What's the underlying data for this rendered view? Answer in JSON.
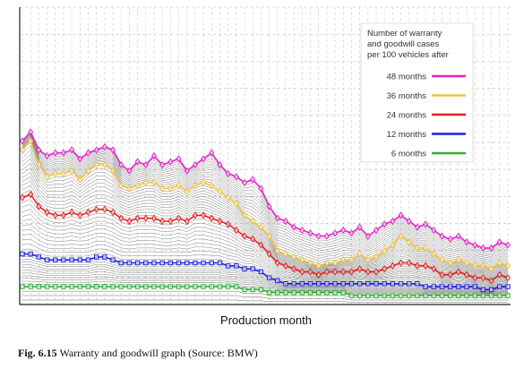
{
  "chart_data": {
    "type": "line",
    "xlabel": "Production month",
    "ylabel": "",
    "legend": {
      "title": "Number of warranty and goodwill cases per 100 vehicles after",
      "title_lines": [
        "Number of warranty",
        "and goodwill cases",
        "per 100 vehicles after"
      ],
      "placement": "top-right"
    },
    "ylim": [
      0,
      100
    ],
    "grid": true,
    "x": [
      1,
      2,
      3,
      4,
      5,
      6,
      7,
      8,
      9,
      10,
      11,
      12,
      13,
      14,
      15,
      16,
      17,
      18,
      19,
      20,
      21,
      22,
      23,
      24,
      25,
      26,
      27,
      28,
      29,
      30,
      31,
      32,
      33,
      34,
      35,
      36,
      37,
      38,
      39,
      40,
      41,
      42,
      43,
      44,
      45,
      46,
      47,
      48,
      49,
      50,
      51,
      52,
      53,
      54,
      55,
      56,
      57,
      58,
      59,
      60
    ],
    "series": [
      {
        "name": "48 months",
        "color": "#e020c8",
        "marker": "diamond",
        "values": [
          55,
          58,
          52,
          50,
          51,
          51,
          52,
          49,
          51,
          52,
          53,
          52,
          47,
          45,
          48,
          47,
          50,
          47,
          48,
          49,
          45,
          47,
          49,
          51,
          47,
          44,
          43,
          41,
          42,
          39,
          33,
          29,
          28,
          26,
          25,
          24,
          23,
          23,
          24,
          25,
          24,
          26,
          23,
          25,
          27,
          28,
          30,
          28,
          26,
          27,
          25,
          23,
          22,
          23,
          21,
          20,
          19,
          19,
          21,
          20
        ]
      },
      {
        "name": "36 months",
        "color": "#f0c040",
        "marker": "diamond",
        "values": [
          52,
          55,
          47,
          43,
          44,
          44,
          45,
          42,
          45,
          47,
          47,
          45,
          40,
          39,
          40,
          41,
          41,
          39,
          39,
          40,
          38,
          40,
          41,
          40,
          38,
          36,
          34,
          30,
          28,
          26,
          23,
          18,
          17,
          16,
          15,
          14,
          13,
          14,
          14,
          15,
          15,
          17,
          15,
          16,
          18,
          20,
          23,
          21,
          19,
          19,
          17,
          15,
          14,
          15,
          14,
          13,
          13,
          12,
          14,
          13
        ]
      },
      {
        "name": "24 months",
        "color": "#e02020",
        "marker": "diamond",
        "values": [
          36,
          37,
          33,
          31,
          30,
          30,
          31,
          30,
          31,
          32,
          32,
          31,
          29,
          28,
          29,
          29,
          29,
          28,
          28,
          29,
          28,
          30,
          30,
          29,
          28,
          27,
          25,
          23,
          22,
          20,
          17,
          14,
          13,
          12,
          11,
          11,
          10,
          11,
          11,
          11,
          11,
          12,
          11,
          11,
          12,
          13,
          14,
          14,
          13,
          13,
          12,
          10,
          10,
          11,
          10,
          9,
          9,
          8,
          10,
          9
        ]
      },
      {
        "name": "12 months",
        "color": "#2020e0",
        "marker": "square",
        "values": [
          17,
          17,
          16,
          15,
          15,
          15,
          15,
          15,
          15,
          16,
          16,
          15,
          14,
          14,
          14,
          14,
          14,
          14,
          14,
          14,
          14,
          14,
          14,
          14,
          14,
          13,
          13,
          12,
          12,
          11,
          9,
          8,
          7,
          7,
          7,
          7,
          7,
          7,
          7,
          7,
          7,
          7,
          7,
          7,
          7,
          7,
          7,
          7,
          7,
          6,
          6,
          6,
          6,
          6,
          6,
          6,
          5,
          5,
          6,
          6
        ]
      },
      {
        "name": "6 months",
        "color": "#30b030",
        "marker": "square",
        "values": [
          6,
          6,
          6,
          6,
          6,
          6,
          6,
          6,
          6,
          6,
          6,
          6,
          6,
          6,
          6,
          6,
          6,
          6,
          6,
          6,
          6,
          6,
          6,
          6,
          6,
          6,
          6,
          5,
          5,
          5,
          4,
          4,
          4,
          4,
          4,
          4,
          4,
          4,
          4,
          4,
          3,
          3,
          3,
          3,
          3,
          3,
          3,
          3,
          3,
          3,
          3,
          3,
          3,
          3,
          3,
          3,
          3,
          3,
          3,
          3
        ]
      }
    ]
  },
  "caption": {
    "label": "Fig. 6.15",
    "text": " Warranty and goodwill graph (Source: BMW)"
  }
}
